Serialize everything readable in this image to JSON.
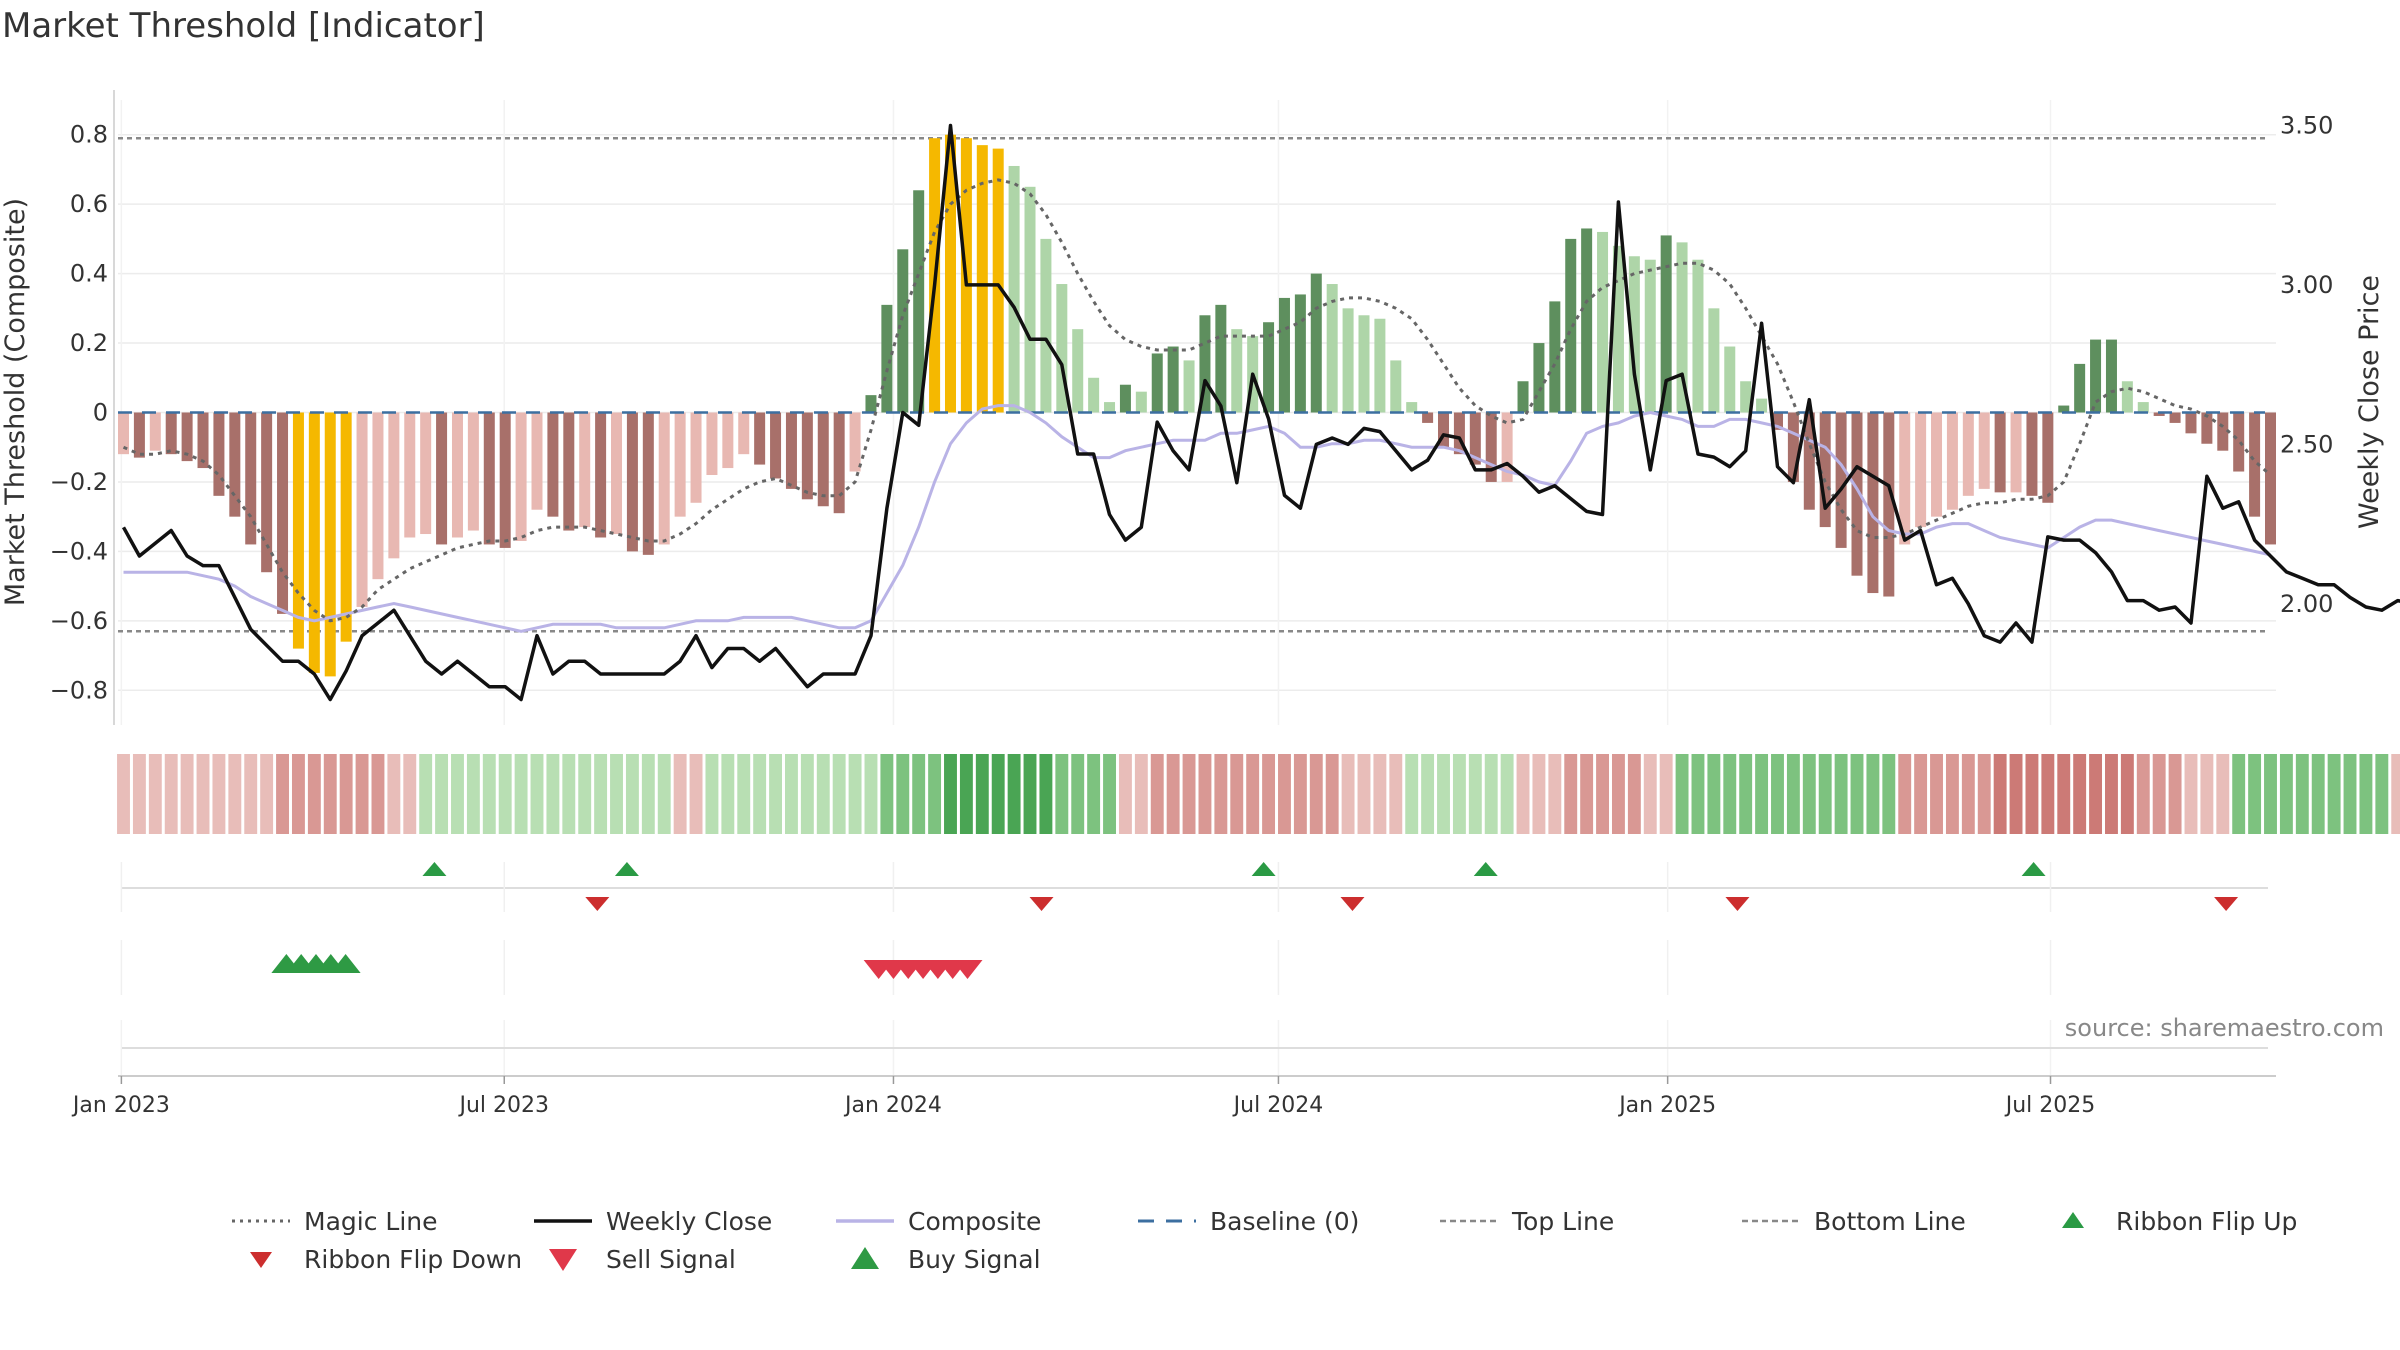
{
  "title": "Market Threshold [Indicator]",
  "source": "source: sharemaestro.com",
  "colors": {
    "pos_dark": "#5e8f5e",
    "pos_light": "#aed5a8",
    "neg_dark": "#a8706a",
    "neg_light": "#e8b8b2",
    "extreme": "#f5b800",
    "close": "#111111",
    "composite": "#b9b3e6",
    "magic": "#666666",
    "baseline": "#3c6fa0",
    "threshold": "#888888",
    "flip_up": "#2a9a44",
    "flip_down": "#cc2e2e",
    "sell": "#e0384a",
    "buy": "#2e9a44"
  },
  "legend": [
    {
      "label": "Magic Line",
      "icon": "dotted-grey-line"
    },
    {
      "label": "Weekly Close",
      "icon": "solid-black-line"
    },
    {
      "label": "Composite",
      "icon": "solid-lavender-line"
    },
    {
      "label": "Baseline (0)",
      "icon": "dashed-blue-line"
    },
    {
      "label": "Top Line",
      "icon": "dashed-grey-line"
    },
    {
      "label": "Bottom Line",
      "icon": "dashed-grey-line"
    },
    {
      "label": "Ribbon Flip Up",
      "icon": "green-up-triangle"
    },
    {
      "label": "Ribbon Flip Down",
      "icon": "red-down-triangle"
    },
    {
      "label": "Sell Signal",
      "icon": "red-down-triangle-large"
    },
    {
      "label": "Buy Signal",
      "icon": "green-up-triangle-large"
    }
  ],
  "chart_data": {
    "type": "bar+line",
    "x_start": "2023-01-02",
    "x_end": "2025-10-13",
    "xticks": [
      "Jan 2023",
      "Jul 2023",
      "Jan 2024",
      "Jul 2024",
      "Jan 2025",
      "Jul 2025"
    ],
    "left_axis": {
      "label": "Market Threshold (Composite)",
      "ylim": [
        -0.9,
        0.9
      ],
      "ticks": [
        0.8,
        0.6,
        0.4,
        0.2,
        0,
        -0.2,
        -0.4,
        -0.6,
        -0.8
      ],
      "tick_labels": [
        "0.8",
        "0.6",
        "0.4",
        "0.2",
        "0",
        "−0.2",
        "−0.4",
        "−0.6",
        "−0.8"
      ]
    },
    "right_axis": {
      "label": "Weekly Close Price",
      "ylim": [
        1.62,
        3.58
      ],
      "ticks": [
        3.5,
        3.0,
        2.5,
        2.0
      ],
      "tick_labels": [
        "3.50",
        "3.00",
        "2.50",
        "2.00"
      ]
    },
    "top_line": 0.79,
    "bottom_line": -0.63,
    "grid": true,
    "composite_bars": [
      -0.12,
      -0.13,
      -0.11,
      -0.12,
      -0.14,
      -0.16,
      -0.24,
      -0.3,
      -0.38,
      -0.46,
      -0.58,
      -0.68,
      -0.75,
      -0.76,
      -0.66,
      -0.56,
      -0.48,
      -0.42,
      -0.36,
      -0.35,
      -0.38,
      -0.36,
      -0.34,
      -0.38,
      -0.39,
      -0.37,
      -0.28,
      -0.3,
      -0.34,
      -0.33,
      -0.36,
      -0.35,
      -0.4,
      -0.41,
      -0.38,
      -0.3,
      -0.26,
      -0.18,
      -0.16,
      -0.12,
      -0.15,
      -0.19,
      -0.22,
      -0.25,
      -0.27,
      -0.29,
      -0.17,
      0.05,
      0.31,
      0.47,
      0.64,
      0.79,
      0.8,
      0.79,
      0.77,
      0.76,
      0.71,
      0.65,
      0.5,
      0.37,
      0.24,
      0.1,
      0.03,
      0.08,
      0.06,
      0.17,
      0.19,
      0.15,
      0.28,
      0.31,
      0.24,
      0.22,
      0.26,
      0.33,
      0.34,
      0.4,
      0.37,
      0.3,
      0.28,
      0.27,
      0.15,
      0.03,
      -0.03,
      -0.1,
      -0.12,
      -0.15,
      -0.2,
      -0.2,
      0.09,
      0.2,
      0.32,
      0.5,
      0.53,
      0.52,
      0.48,
      0.45,
      0.44,
      0.51,
      0.49,
      0.44,
      0.3,
      0.19,
      0.09,
      0.04,
      -0.05,
      -0.2,
      -0.28,
      -0.33,
      -0.39,
      -0.47,
      -0.52,
      -0.53,
      -0.38,
      -0.33,
      -0.3,
      -0.28,
      -0.24,
      -0.22,
      -0.23,
      -0.23,
      -0.24,
      -0.26,
      0.02,
      0.14,
      0.21,
      0.21,
      0.09,
      0.03,
      -0.01,
      -0.03,
      -0.06,
      -0.09,
      -0.11,
      -0.17,
      -0.3,
      -0.38
    ],
    "weekly_close": [
      2.24,
      2.15,
      2.19,
      2.23,
      2.15,
      2.12,
      2.12,
      2.02,
      1.92,
      1.87,
      1.82,
      1.82,
      1.78,
      1.7,
      1.79,
      1.9,
      1.94,
      1.98,
      1.9,
      1.82,
      1.78,
      1.82,
      1.78,
      1.74,
      1.74,
      1.7,
      1.9,
      1.78,
      1.82,
      1.82,
      1.78,
      1.78,
      1.78,
      1.78,
      1.78,
      1.82,
      1.9,
      1.8,
      1.86,
      1.86,
      1.82,
      1.86,
      1.8,
      1.74,
      1.78,
      1.78,
      1.78,
      1.9,
      2.3,
      2.6,
      2.56,
      3.0,
      3.5,
      3.0,
      3.0,
      3.0,
      2.93,
      2.83,
      2.83,
      2.75,
      2.47,
      2.47,
      2.28,
      2.2,
      2.24,
      2.57,
      2.48,
      2.42,
      2.7,
      2.62,
      2.38,
      2.72,
      2.58,
      2.34,
      2.3,
      2.5,
      2.52,
      2.5,
      2.55,
      2.54,
      2.48,
      2.42,
      2.45,
      2.53,
      2.52,
      2.42,
      2.42,
      2.44,
      2.4,
      2.35,
      2.37,
      2.33,
      2.29,
      2.28,
      3.26,
      2.72,
      2.42,
      2.7,
      2.72,
      2.47,
      2.46,
      2.43,
      2.48,
      2.88,
      2.43,
      2.38,
      2.64,
      2.3,
      2.36,
      2.43,
      2.4,
      2.37,
      2.2,
      2.23,
      2.06,
      2.08,
      2.0,
      1.9,
      1.88,
      1.94,
      1.88,
      2.21,
      2.2,
      2.2,
      2.16,
      2.1,
      2.01,
      2.01,
      1.98,
      1.99,
      1.94,
      2.4,
      2.3,
      2.32,
      2.2,
      2.15,
      2.1,
      2.08,
      2.06,
      2.06,
      2.02,
      1.99,
      1.98,
      2.01,
      2.0,
      1.98
    ],
    "magic_line": [
      -0.1,
      -0.12,
      -0.12,
      -0.11,
      -0.12,
      -0.14,
      -0.18,
      -0.24,
      -0.3,
      -0.38,
      -0.46,
      -0.52,
      -0.57,
      -0.6,
      -0.59,
      -0.56,
      -0.51,
      -0.48,
      -0.45,
      -0.43,
      -0.41,
      -0.39,
      -0.38,
      -0.37,
      -0.37,
      -0.36,
      -0.34,
      -0.33,
      -0.33,
      -0.33,
      -0.34,
      -0.35,
      -0.36,
      -0.37,
      -0.37,
      -0.35,
      -0.32,
      -0.28,
      -0.25,
      -0.22,
      -0.2,
      -0.19,
      -0.21,
      -0.23,
      -0.24,
      -0.24,
      -0.2,
      -0.05,
      0.12,
      0.28,
      0.4,
      0.52,
      0.6,
      0.64,
      0.66,
      0.67,
      0.66,
      0.63,
      0.57,
      0.49,
      0.4,
      0.32,
      0.25,
      0.21,
      0.19,
      0.18,
      0.18,
      0.18,
      0.2,
      0.22,
      0.22,
      0.22,
      0.22,
      0.24,
      0.26,
      0.3,
      0.32,
      0.33,
      0.33,
      0.32,
      0.3,
      0.27,
      0.21,
      0.14,
      0.07,
      0.02,
      -0.01,
      -0.03,
      -0.02,
      0.06,
      0.14,
      0.24,
      0.32,
      0.36,
      0.38,
      0.4,
      0.41,
      0.42,
      0.43,
      0.43,
      0.41,
      0.37,
      0.3,
      0.22,
      0.14,
      0.03,
      -0.09,
      -0.2,
      -0.28,
      -0.34,
      -0.36,
      -0.36,
      -0.35,
      -0.33,
      -0.31,
      -0.29,
      -0.27,
      -0.26,
      -0.26,
      -0.25,
      -0.25,
      -0.24,
      -0.2,
      -0.09,
      0.03,
      0.06,
      0.07,
      0.06,
      0.04,
      0.02,
      0.01,
      -0.01,
      -0.04,
      -0.08,
      -0.14,
      -0.18
    ],
    "composite_line": [
      -0.46,
      -0.46,
      -0.46,
      -0.46,
      -0.46,
      -0.47,
      -0.48,
      -0.5,
      -0.53,
      -0.55,
      -0.57,
      -0.59,
      -0.6,
      -0.59,
      -0.58,
      -0.57,
      -0.56,
      -0.55,
      -0.56,
      -0.57,
      -0.58,
      -0.59,
      -0.6,
      -0.61,
      -0.62,
      -0.63,
      -0.62,
      -0.61,
      -0.61,
      -0.61,
      -0.61,
      -0.62,
      -0.62,
      -0.62,
      -0.62,
      -0.61,
      -0.6,
      -0.6,
      -0.6,
      -0.59,
      -0.59,
      -0.59,
      -0.59,
      -0.6,
      -0.61,
      -0.62,
      -0.62,
      -0.6,
      -0.52,
      -0.44,
      -0.33,
      -0.2,
      -0.09,
      -0.03,
      0.01,
      0.02,
      0.02,
      0.0,
      -0.03,
      -0.07,
      -0.1,
      -0.13,
      -0.13,
      -0.11,
      -0.1,
      -0.09,
      -0.08,
      -0.08,
      -0.08,
      -0.06,
      -0.06,
      -0.05,
      -0.04,
      -0.06,
      -0.1,
      -0.1,
      -0.09,
      -0.09,
      -0.08,
      -0.08,
      -0.09,
      -0.1,
      -0.1,
      -0.1,
      -0.11,
      -0.13,
      -0.15,
      -0.17,
      -0.18,
      -0.2,
      -0.21,
      -0.14,
      -0.06,
      -0.04,
      -0.03,
      -0.01,
      0.0,
      -0.01,
      -0.02,
      -0.04,
      -0.04,
      -0.02,
      -0.02,
      -0.03,
      -0.04,
      -0.06,
      -0.08,
      -0.1,
      -0.15,
      -0.22,
      -0.3,
      -0.34,
      -0.35,
      -0.35,
      -0.33,
      -0.32,
      -0.32,
      -0.34,
      -0.36,
      -0.37,
      -0.38,
      -0.39,
      -0.36,
      -0.33,
      -0.31,
      -0.31,
      -0.32,
      -0.33,
      -0.34,
      -0.35,
      -0.36,
      -0.37,
      -0.38,
      -0.39,
      -0.4,
      -0.41
    ]
  },
  "ribbon_levels": [
    -1,
    -1,
    -1,
    -1,
    -1,
    -1,
    -1,
    -1,
    -1,
    -1,
    -2,
    -2,
    -2,
    -2,
    -2,
    -2,
    -2,
    -1,
    -1,
    1,
    1,
    1,
    1,
    1,
    1,
    1,
    1,
    1,
    1,
    1,
    1,
    1,
    1,
    1,
    1,
    -1,
    -1,
    1,
    1,
    1,
    1,
    1,
    1,
    1,
    1,
    1,
    1,
    1,
    2,
    2,
    2,
    2,
    3,
    3,
    3,
    3,
    3,
    3,
    3,
    2,
    2,
    2,
    2,
    -1,
    -1,
    -2,
    -2,
    -2,
    -2,
    -2,
    -2,
    -2,
    -2,
    -2,
    -2,
    -2,
    -2,
    -1,
    -1,
    -1,
    -1,
    1,
    1,
    1,
    1,
    1,
    1,
    1,
    -1,
    -1,
    -1,
    -2,
    -2,
    -2,
    -2,
    -2,
    -1,
    -1,
    2,
    2,
    2,
    2,
    2,
    2,
    2,
    2,
    2,
    2,
    2,
    2,
    2,
    2,
    -2,
    -2,
    -2,
    -2,
    -2,
    -2,
    -3,
    -3,
    -3,
    -3,
    -3,
    -3,
    -3,
    -3,
    -3,
    -2,
    -2,
    -2,
    -1,
    -1,
    -1,
    2,
    2,
    2,
    2,
    2,
    2,
    2,
    2,
    2,
    2,
    -1,
    -1,
    -1,
    -1,
    -1,
    -1
  ],
  "ribbon_flip_up": [
    "2023-05-29",
    "2023-08-28",
    "2024-06-24",
    "2024-10-07",
    "2025-06-23"
  ],
  "ribbon_flip_down": [
    "2023-08-14",
    "2024-03-11",
    "2024-08-05",
    "2025-02-03",
    "2025-09-22"
  ],
  "buy_signals": [
    "2023-03-20",
    "2023-03-27",
    "2023-04-03",
    "2023-04-10",
    "2023-04-17"
  ],
  "sell_signals": [
    "2023-12-25",
    "2024-01-01",
    "2024-01-08",
    "2024-01-15",
    "2024-01-22",
    "2024-01-29",
    "2024-02-05"
  ]
}
